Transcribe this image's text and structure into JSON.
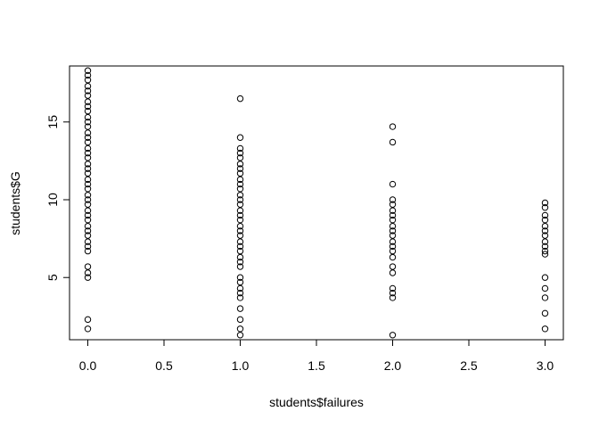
{
  "chart_data": {
    "type": "scatter",
    "title": "",
    "xlabel": "students$failures",
    "ylabel": "students$G",
    "xlim": [
      -0.12,
      3.12
    ],
    "ylim": [
      1.0,
      18.6
    ],
    "xticks": [
      0.0,
      0.5,
      1.0,
      1.5,
      2.0,
      2.5,
      3.0
    ],
    "xtick_labels": [
      "0.0",
      "0.5",
      "1.0",
      "1.5",
      "2.0",
      "2.5",
      "3.0"
    ],
    "yticks": [
      5,
      10,
      15
    ],
    "ytick_labels": [
      "5",
      "10",
      "15"
    ],
    "marker": "open-circle",
    "grid": false,
    "legend": "none",
    "series": [
      {
        "x": 0,
        "y": [
          1.7,
          2.3,
          5.0,
          5.3,
          5.7,
          6.7,
          7.0,
          7.3,
          7.7,
          8.0,
          8.3,
          8.7,
          9.0,
          9.3,
          9.7,
          10.0,
          10.3,
          10.7,
          11.0,
          11.3,
          11.7,
          12.0,
          12.3,
          12.7,
          13.0,
          13.3,
          13.7,
          14.0,
          14.3,
          14.7,
          15.0,
          15.3,
          15.7,
          16.0,
          16.3,
          16.7,
          17.0,
          17.3,
          17.7,
          18.0,
          18.3
        ]
      },
      {
        "x": 1,
        "y": [
          1.3,
          1.7,
          2.3,
          3.0,
          3.7,
          4.0,
          4.3,
          4.7,
          5.0,
          5.7,
          6.0,
          6.3,
          6.7,
          7.0,
          7.3,
          7.7,
          8.0,
          8.3,
          8.7,
          9.0,
          9.3,
          9.7,
          10.0,
          10.3,
          10.7,
          11.0,
          11.3,
          11.7,
          12.0,
          12.3,
          12.7,
          13.0,
          13.3,
          14.0,
          16.5
        ]
      },
      {
        "x": 2,
        "y": [
          1.3,
          3.7,
          4.0,
          4.3,
          5.3,
          5.7,
          6.3,
          6.7,
          7.0,
          7.3,
          7.7,
          8.0,
          8.3,
          8.7,
          9.0,
          9.3,
          9.7,
          10.0,
          11.0,
          13.7,
          14.7
        ]
      },
      {
        "x": 3,
        "y": [
          1.7,
          2.7,
          3.7,
          4.3,
          5.0,
          6.5,
          6.7,
          7.0,
          7.3,
          7.7,
          8.0,
          8.3,
          8.7,
          9.0,
          9.5,
          9.8
        ]
      }
    ]
  }
}
